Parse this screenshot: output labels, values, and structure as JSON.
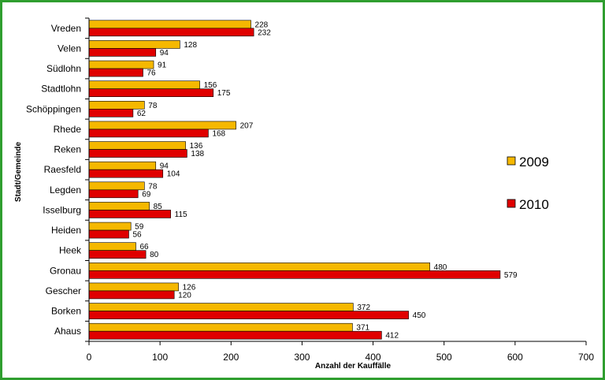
{
  "chart_data": {
    "type": "bar",
    "orientation": "horizontal",
    "title": "",
    "xlabel": "Anzahl der Kauffälle",
    "ylabel": "Stadt/Gemeinde",
    "xlim": [
      0,
      700
    ],
    "xticks": [
      "0",
      "100",
      "200",
      "300",
      "400",
      "500",
      "600",
      "700"
    ],
    "grid": false,
    "legend_position": "right",
    "categories": [
      "Vreden",
      "Velen",
      "Südlohn",
      "Stadtlohn",
      "Schöppingen",
      "Rhede",
      "Reken",
      "Raesfeld",
      "Legden",
      "Isselburg",
      "Heiden",
      "Heek",
      "Gronau",
      "Gescher",
      "Borken",
      "Ahaus"
    ],
    "series": [
      {
        "name": "2009",
        "color": "#f5b800",
        "values": [
          228,
          128,
          91,
          156,
          78,
          207,
          136,
          94,
          78,
          85,
          59,
          66,
          480,
          126,
          372,
          371
        ]
      },
      {
        "name": "2010",
        "color": "#e00000",
        "values": [
          232,
          94,
          76,
          175,
          62,
          168,
          138,
          104,
          69,
          115,
          56,
          80,
          579,
          120,
          450,
          412
        ]
      }
    ]
  }
}
